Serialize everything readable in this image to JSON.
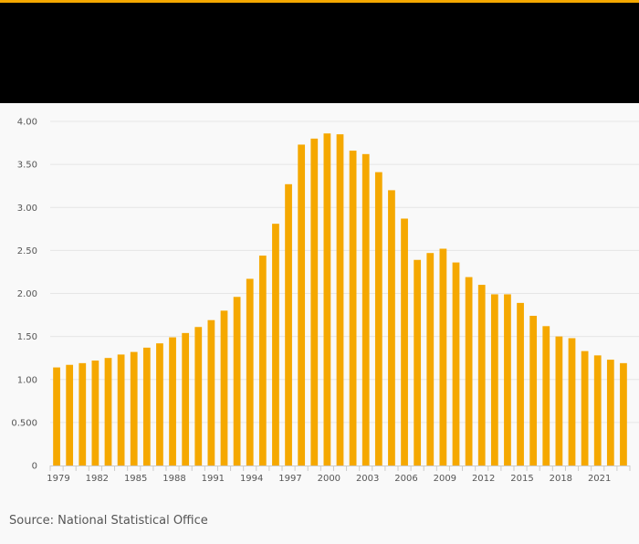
{
  "colors": {
    "accent": "#f5a800",
    "header": "#000000",
    "bar": "#f5a800",
    "grid": "#e6e6e6"
  },
  "source": {
    "text": "Source: National Statistical Office"
  },
  "chart_data": {
    "type": "bar",
    "title": "",
    "xlabel": "",
    "ylabel": "",
    "ylim": [
      0,
      4
    ],
    "y_ticks": [
      0,
      0.5,
      1,
      1.5,
      2,
      2.5,
      3,
      3.5,
      4
    ],
    "y_tick_labels": [
      "0",
      "0.500",
      "1.00",
      "1.50",
      "2.00",
      "2.50",
      "3.00",
      "3.50",
      "4.00"
    ],
    "x_tick_labels": [
      "1979",
      "1982",
      "1985",
      "1988",
      "1991",
      "1994",
      "1997",
      "2000",
      "2003",
      "2006",
      "2009",
      "2012",
      "2015",
      "2018",
      "2021"
    ],
    "categories": [
      "1979",
      "1980",
      "1981",
      "1982",
      "1983",
      "1984",
      "1985",
      "1986",
      "1987",
      "1988",
      "1989",
      "1990",
      "1991",
      "1992",
      "1993",
      "1994",
      "1995",
      "1996",
      "1997",
      "1998",
      "1999",
      "2000",
      "2001",
      "2002",
      "2003",
      "2004",
      "2005",
      "2006",
      "2007",
      "2008",
      "2009",
      "2010",
      "2011",
      "2012",
      "2013",
      "2014",
      "2015",
      "2016",
      "2017",
      "2018",
      "2019",
      "2020",
      "2021",
      "2022",
      "2023"
    ],
    "values": [
      1.14,
      1.17,
      1.19,
      1.22,
      1.25,
      1.29,
      1.32,
      1.37,
      1.42,
      1.49,
      1.54,
      1.61,
      1.69,
      1.8,
      1.96,
      2.17,
      2.44,
      2.81,
      3.27,
      3.73,
      3.8,
      3.86,
      3.85,
      3.66,
      3.62,
      3.41,
      3.2,
      2.87,
      2.39,
      2.47,
      2.52,
      2.36,
      2.19,
      2.1,
      1.99,
      1.99,
      1.89,
      1.74,
      1.62,
      1.5,
      1.48,
      1.33,
      1.28,
      1.23,
      1.19
    ],
    "grid": true,
    "legend": "none"
  }
}
